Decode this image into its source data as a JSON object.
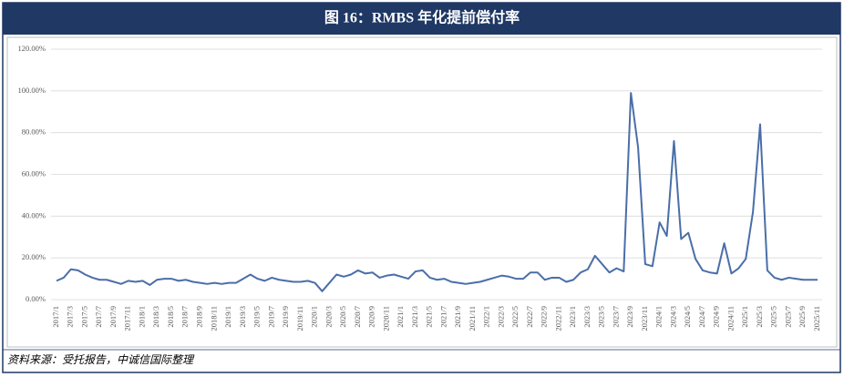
{
  "chart_data": {
    "type": "line",
    "title": "图 16：RMBS 年化提前偿付率",
    "source": "资料来源：受托报告，中诚信国际整理",
    "categories": [
      "2017/1",
      null,
      "2017/3",
      null,
      "2017/5",
      null,
      "2017/7",
      null,
      "2017/9",
      null,
      "2017/11",
      null,
      "2018/1",
      null,
      "2018/3",
      null,
      "2018/5",
      null,
      "2018/7",
      null,
      "2018/9",
      null,
      "2018/11",
      null,
      "2019/1",
      null,
      "2019/3",
      null,
      "2019/5",
      null,
      "2019/7",
      null,
      "2019/9",
      null,
      "2019/11",
      null,
      "2020/1",
      null,
      "2020/3",
      null,
      "2020/5",
      null,
      "2020/7",
      null,
      "2020/9",
      null,
      "2020/11",
      null,
      "2021/1",
      null,
      "2021/3",
      null,
      "2021/5",
      null,
      "2021/7",
      null,
      "2021/9",
      null,
      "2021/11",
      null,
      "2022/1",
      null,
      "2022/3",
      null,
      "2022/5",
      null,
      "2022/7",
      null,
      "2022/9",
      null,
      "2022/11",
      null,
      "2023/1",
      null,
      "2023/3",
      null,
      "2023/5",
      null,
      "2023/7",
      null,
      "2023/9",
      null,
      "2023/11",
      null,
      "2024/1",
      null,
      "2024/3",
      null,
      "2024/5",
      null,
      "2024/7",
      null,
      "2024/9",
      null,
      "2024/11",
      null,
      "2025/1",
      null,
      "2025/3",
      null,
      "2025/5",
      null,
      "2025/7",
      null,
      "2025/9",
      null,
      "2025/11"
    ],
    "values": [
      9,
      10.5,
      14.5,
      14,
      12,
      10.5,
      9.5,
      9.5,
      8.5,
      7.5,
      9,
      8.5,
      9,
      7,
      9.5,
      10,
      10,
      9,
      9.5,
      8.5,
      8,
      7.5,
      8,
      7.5,
      8,
      8,
      10,
      12,
      10,
      9,
      10.5,
      9.5,
      9,
      8.5,
      8.5,
      9,
      8,
      4,
      8,
      12,
      11,
      12,
      14,
      12.5,
      13,
      10.5,
      11.5,
      12,
      11,
      10,
      13.5,
      14,
      10.5,
      9.5,
      10,
      8.5,
      8,
      7.5,
      8,
      8.5,
      9.5,
      10.5,
      11.5,
      11,
      10,
      10,
      13,
      13,
      9.5,
      10.5,
      10.5,
      8.5,
      9.5,
      13,
      14.5,
      21,
      17,
      13,
      15,
      13.5,
      99,
      73,
      17,
      16,
      37,
      30.5,
      76,
      29,
      32,
      19.5,
      14,
      13,
      12.5,
      27,
      12.5,
      15,
      19.5,
      42,
      84,
      14,
      10.5,
      9.5,
      10.5,
      10,
      9.5,
      9.5,
      9.5
    ],
    "color": "#4a6ea8",
    "ylim": [
      0,
      120
    ],
    "yticks": [
      {
        "value": 0,
        "label": "0.00%"
      },
      {
        "value": 20,
        "label": "20.00%"
      },
      {
        "value": 40,
        "label": "40.00%"
      },
      {
        "value": 60,
        "label": "60.00%"
      },
      {
        "value": 80,
        "label": "80.00%"
      },
      {
        "value": 100,
        "label": "100.00%"
      },
      {
        "value": 120,
        "label": "120.00%"
      }
    ],
    "grid": true
  }
}
